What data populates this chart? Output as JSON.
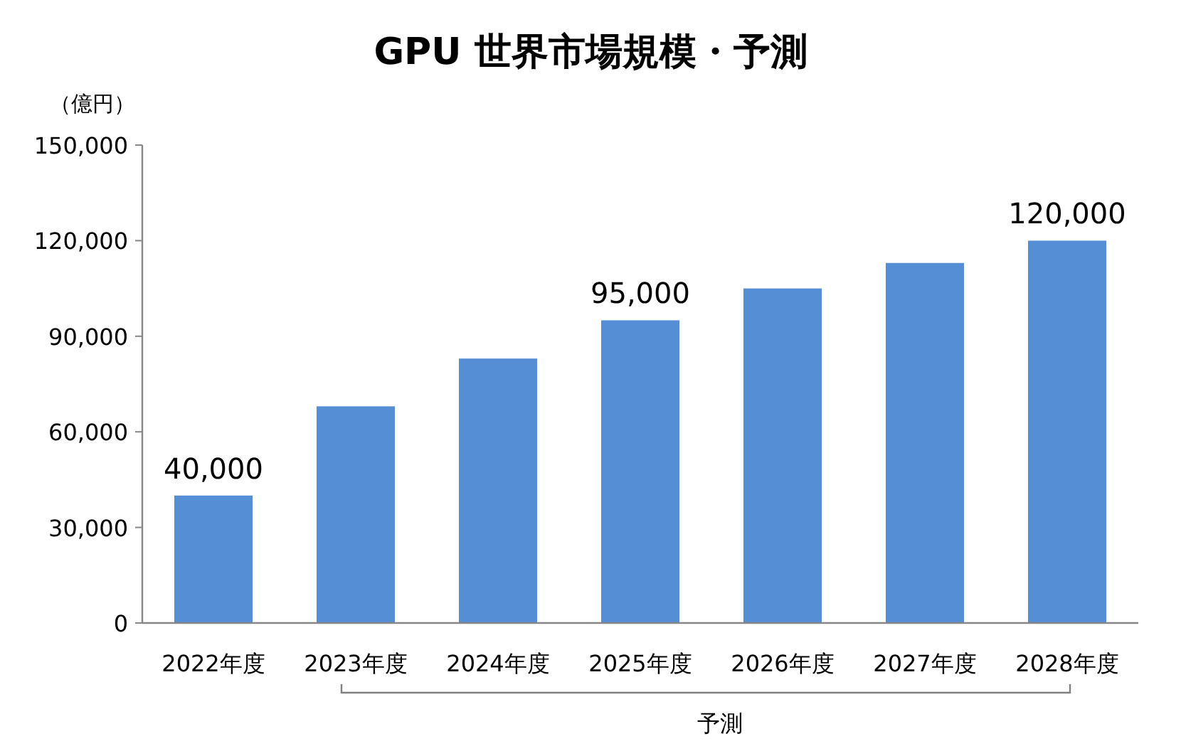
{
  "chart_data": {
    "type": "bar",
    "title": "GPU 世界市場規模・予測",
    "ylabel": "（億円）",
    "categories": [
      "2022年度",
      "2023年度",
      "2024年度",
      "2025年度",
      "2026年度",
      "2027年度",
      "2028年度"
    ],
    "values": [
      40000,
      68000,
      83000,
      95000,
      105000,
      113000,
      120000
    ],
    "value_labels": [
      "40,000",
      null,
      null,
      "95,000",
      null,
      null,
      "120,000"
    ],
    "color": "#558ed5",
    "ylim": [
      0,
      150000
    ],
    "yticks": [
      {
        "value": 0,
        "label": "0"
      },
      {
        "value": 30000,
        "label": "30,000"
      },
      {
        "value": 60000,
        "label": "60,000"
      },
      {
        "value": 90000,
        "label": "90,000"
      },
      {
        "value": 120000,
        "label": "120,000"
      },
      {
        "value": 150000,
        "label": "150,000"
      }
    ],
    "annotations": [
      "予測"
    ]
  }
}
